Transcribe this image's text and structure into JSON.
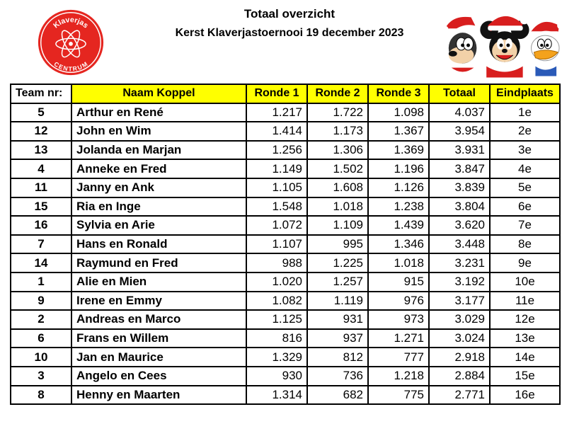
{
  "header": {
    "title": "Totaal overzicht",
    "subtitle": "Kerst Klaverjastoernooi 19 december 2023"
  },
  "logo": {
    "top_text": "Klaverjas",
    "bottom_text": "CENTRUM",
    "color": "#e52620"
  },
  "mascot": {
    "icon": "christmas-cartoon-characters"
  },
  "table": {
    "columns": [
      "Team nr:",
      "Naam Koppel",
      "Ronde 1",
      "Ronde 2",
      "Ronde 3",
      "Totaal",
      "Eindplaats"
    ],
    "header_color": "#ffff00",
    "rows": [
      {
        "team": "5",
        "name": "Arthur en René",
        "r1": "1.217",
        "r2": "1.722",
        "r3": "1.098",
        "total": "4.037",
        "place": "1e"
      },
      {
        "team": "12",
        "name": "John en Wim",
        "r1": "1.414",
        "r2": "1.173",
        "r3": "1.367",
        "total": "3.954",
        "place": "2e"
      },
      {
        "team": "13",
        "name": "Jolanda en Marjan",
        "r1": "1.256",
        "r2": "1.306",
        "r3": "1.369",
        "total": "3.931",
        "place": "3e"
      },
      {
        "team": "4",
        "name": "Anneke en Fred",
        "r1": "1.149",
        "r2": "1.502",
        "r3": "1.196",
        "total": "3.847",
        "place": "4e"
      },
      {
        "team": "11",
        "name": "Janny en Ank",
        "r1": "1.105",
        "r2": "1.608",
        "r3": "1.126",
        "total": "3.839",
        "place": "5e"
      },
      {
        "team": "15",
        "name": "Ria en Inge",
        "r1": "1.548",
        "r2": "1.018",
        "r3": "1.238",
        "total": "3.804",
        "place": "6e"
      },
      {
        "team": "16",
        "name": "Sylvia en Arie",
        "r1": "1.072",
        "r2": "1.109",
        "r3": "1.439",
        "total": "3.620",
        "place": "7e"
      },
      {
        "team": "7",
        "name": "Hans en Ronald",
        "r1": "1.107",
        "r2": "995",
        "r3": "1.346",
        "total": "3.448",
        "place": "8e"
      },
      {
        "team": "14",
        "name": "Raymund en Fred",
        "r1": "988",
        "r2": "1.225",
        "r3": "1.018",
        "total": "3.231",
        "place": "9e"
      },
      {
        "team": "1",
        "name": "Alie en Mien",
        "r1": "1.020",
        "r2": "1.257",
        "r3": "915",
        "total": "3.192",
        "place": "10e"
      },
      {
        "team": "9",
        "name": "Irene en Emmy",
        "r1": "1.082",
        "r2": "1.119",
        "r3": "976",
        "total": "3.177",
        "place": "11e"
      },
      {
        "team": "2",
        "name": "Andreas en Marco",
        "r1": "1.125",
        "r2": "931",
        "r3": "973",
        "total": "3.029",
        "place": "12e"
      },
      {
        "team": "6",
        "name": "Frans en Willem",
        "r1": "816",
        "r2": "937",
        "r3": "1.271",
        "total": "3.024",
        "place": "13e"
      },
      {
        "team": "10",
        "name": "Jan en Maurice",
        "r1": "1.329",
        "r2": "812",
        "r3": "777",
        "total": "2.918",
        "place": "14e"
      },
      {
        "team": "3",
        "name": "Angelo en Cees",
        "r1": "930",
        "r2": "736",
        "r3": "1.218",
        "total": "2.884",
        "place": "15e"
      },
      {
        "team": "8",
        "name": "Henny en Maarten",
        "r1": "1.314",
        "r2": "682",
        "r3": "775",
        "total": "2.771",
        "place": "16e"
      }
    ]
  }
}
